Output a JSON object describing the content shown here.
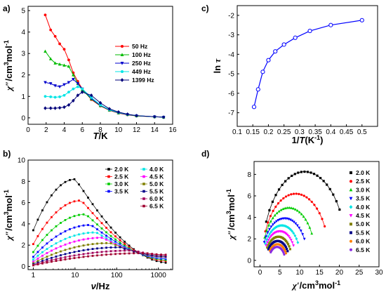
{
  "panels": {
    "a": "a)",
    "b": "b)",
    "c": "c)",
    "d": "d)"
  },
  "chart_data": [
    {
      "id": "a",
      "type": "line",
      "x_label_parts": [
        "T",
        "/K"
      ],
      "y_label_parts": [
        "χ″",
        "/cm",
        "3",
        "mol",
        "-1"
      ],
      "xlim": [
        0,
        16
      ],
      "ylim": [
        -0.3,
        5.2
      ],
      "x_ticks": [
        0,
        2,
        4,
        6,
        8,
        10,
        12,
        14,
        16
      ],
      "y_ticks": [
        0,
        1,
        2,
        3,
        4,
        5
      ],
      "legend_position": "top-right",
      "series": [
        {
          "name": "50 Hz",
          "color": "#ff0000",
          "marker": "circle",
          "x": [
            1.9,
            2.5,
            3,
            3.5,
            4,
            4.5,
            5,
            5.5,
            6,
            7,
            8,
            9,
            10,
            11,
            12,
            14,
            15
          ],
          "y": [
            4.8,
            4.1,
            3.8,
            3.45,
            3.2,
            2.7,
            2.1,
            1.7,
            1.35,
            0.85,
            0.55,
            0.35,
            0.22,
            0.14,
            0.09,
            0.05,
            0.03
          ]
        },
        {
          "name": "100 Hz",
          "color": "#00bb00",
          "marker": "triangle-up",
          "x": [
            1.9,
            2.5,
            3,
            3.5,
            4,
            4.5,
            5,
            5.5,
            6,
            7,
            8,
            9,
            10,
            11,
            12,
            14,
            15
          ],
          "y": [
            3.1,
            2.75,
            2.55,
            2.5,
            2.45,
            2.4,
            2.0,
            1.6,
            1.3,
            0.88,
            0.57,
            0.36,
            0.23,
            0.15,
            0.09,
            0.05,
            0.03
          ]
        },
        {
          "name": "250 Hz",
          "color": "#0000cc",
          "marker": "triangle-down",
          "x": [
            1.9,
            2.5,
            3,
            3.5,
            4,
            4.5,
            5,
            5.5,
            6,
            7,
            8,
            9,
            10,
            11,
            12,
            14,
            15
          ],
          "y": [
            1.65,
            1.6,
            1.5,
            1.45,
            1.55,
            1.65,
            1.8,
            1.6,
            1.35,
            0.9,
            0.58,
            0.37,
            0.24,
            0.15,
            0.1,
            0.05,
            0.03
          ]
        },
        {
          "name": "449 Hz",
          "color": "#00e5e5",
          "marker": "circle",
          "x": [
            1.9,
            2.5,
            3,
            3.5,
            4,
            4.5,
            5,
            5.5,
            6,
            7,
            8,
            9,
            10,
            11,
            12,
            14,
            15
          ],
          "y": [
            1.0,
            0.98,
            0.96,
            0.98,
            1.05,
            1.2,
            1.35,
            1.45,
            1.35,
            0.95,
            0.6,
            0.38,
            0.25,
            0.16,
            0.1,
            0.05,
            0.03
          ]
        },
        {
          "name": "1399 Hz",
          "color": "#00007a",
          "marker": "diamond",
          "x": [
            1.9,
            2.5,
            3,
            3.5,
            4,
            4.5,
            5,
            5.5,
            6,
            7,
            8,
            9,
            10,
            11,
            12,
            14,
            15
          ],
          "y": [
            0.45,
            0.45,
            0.45,
            0.47,
            0.5,
            0.6,
            0.8,
            1.05,
            1.2,
            1.05,
            0.7,
            0.42,
            0.27,
            0.17,
            0.1,
            0.05,
            0.03
          ]
        }
      ]
    },
    {
      "id": "b",
      "type": "scatter",
      "x_scale": "log",
      "x_label_parts": [
        "ν",
        "/Hz"
      ],
      "y_label_parts": [
        "χ″",
        "/cm",
        "3",
        "mol",
        "-1"
      ],
      "xlim": [
        0.75,
        2200
      ],
      "ylim": [
        -0.3,
        10
      ],
      "x_ticks": [
        1,
        10,
        100,
        1000
      ],
      "y_ticks": [
        0,
        2,
        4,
        6,
        8,
        10
      ],
      "legend_position": "top-right",
      "series": [
        {
          "name": "2.0 K",
          "color": "#000000",
          "peak_x": 10,
          "peak_y": 8.2,
          "base_y": 3.4,
          "tail_y": 0.35
        },
        {
          "name": "2.5 K",
          "color": "#ff0000",
          "peak_x": 14,
          "peak_y": 6.2,
          "base_y": 2.1,
          "tail_y": 0.5
        },
        {
          "name": "3.0 K",
          "color": "#00cc00",
          "peak_x": 18,
          "peak_y": 4.9,
          "base_y": 1.35,
          "tail_y": 0.6
        },
        {
          "name": "3.5 K",
          "color": "#0000ff",
          "peak_x": 24,
          "peak_y": 3.9,
          "base_y": 0.9,
          "tail_y": 0.7
        },
        {
          "name": "4.0 K",
          "color": "#00e5e5",
          "peak_x": 32,
          "peak_y": 3.2,
          "base_y": 0.65,
          "tail_y": 0.8
        },
        {
          "name": "4.5 K",
          "color": "#ff00ff",
          "peak_x": 45,
          "peak_y": 2.7,
          "base_y": 0.45,
          "tail_y": 0.85
        },
        {
          "name": "5.0 K",
          "color": "#808000",
          "peak_x": 70,
          "peak_y": 2.2,
          "base_y": 0.3,
          "tail_y": 0.9
        },
        {
          "name": "5.5 K",
          "color": "#000088",
          "peak_x": 120,
          "peak_y": 1.8,
          "base_y": 0.2,
          "tail_y": 0.95
        },
        {
          "name": "6.0 K",
          "color": "#a0005a",
          "peak_x": 250,
          "peak_y": 1.5,
          "base_y": 0.14,
          "tail_y": 1.05
        },
        {
          "name": "6.5 K",
          "color": "#a00030",
          "peak_x": 500,
          "peak_y": 1.25,
          "base_y": 0.1,
          "tail_y": 1.1
        }
      ]
    },
    {
      "id": "c",
      "type": "line",
      "x_label_parts": [
        "1/",
        "T",
        "(K",
        "-1",
        ")"
      ],
      "y_label_parts": [
        "ln",
        "τ"
      ],
      "xlim": [
        0.1,
        0.55
      ],
      "ylim": [
        -7.7,
        -1.5
      ],
      "x_ticks": [
        0.1,
        0.15,
        0.2,
        0.25,
        0.3,
        0.35,
        0.4,
        0.45,
        0.5
      ],
      "x_tick_labels": [
        "0.1",
        "0.15",
        "0.2",
        "0.25",
        "0.3",
        "0.35",
        "0.4",
        "0.45",
        "0.5"
      ],
      "y_ticks": [
        -7,
        -6,
        -5,
        -4,
        -3,
        -2
      ],
      "color": "#0000ff",
      "x": [
        0.154,
        0.167,
        0.182,
        0.2,
        0.222,
        0.25,
        0.286,
        0.333,
        0.4,
        0.5
      ],
      "y": [
        -6.7,
        -5.8,
        -4.9,
        -4.3,
        -3.85,
        -3.5,
        -3.15,
        -2.8,
        -2.5,
        -2.25
      ]
    },
    {
      "id": "d",
      "type": "scatter",
      "x_label_parts": [
        "χ′",
        "/cm",
        "3",
        "mol",
        "-1"
      ],
      "y_label_parts": [
        "χ″",
        "/cm",
        "3",
        "mol",
        "-1"
      ],
      "xlim": [
        -1.5,
        30
      ],
      "ylim": [
        -0.6,
        9.2
      ],
      "x_ticks": [
        0,
        5,
        10,
        15,
        20,
        25,
        30
      ],
      "y_ticks": [
        0,
        2,
        4,
        6,
        8
      ],
      "legend_position": "right",
      "series": [
        {
          "name": "2.0 K",
          "color": "#000000",
          "x0": 0.5,
          "x1": 22,
          "peak": 8.25,
          "start": 0.05,
          "end": 0.91
        },
        {
          "name": "2.5 K",
          "color": "#ff0000",
          "x0": 0.5,
          "x1": 17.5,
          "peak": 6.2,
          "start": 0.05,
          "end": 0.93
        },
        {
          "name": "3.0 K",
          "color": "#00cc00",
          "x0": 0.5,
          "x1": 14,
          "peak": 4.9,
          "start": 0.05,
          "end": 0.93
        },
        {
          "name": "3.5 K",
          "color": "#0000ff",
          "x0": 0.5,
          "x1": 12,
          "peak": 3.9,
          "start": 0.05,
          "end": 0.93
        },
        {
          "name": "4.0 K",
          "color": "#00e5e5",
          "x0": 0.8,
          "x1": 10.2,
          "peak": 3.25,
          "start": 0.06,
          "end": 0.93
        },
        {
          "name": "4.5 K",
          "color": "#ff00ff",
          "x0": 1,
          "x1": 9,
          "peak": 2.7,
          "start": 0.07,
          "end": 0.93
        },
        {
          "name": "5.0 K",
          "color": "#808000",
          "x0": 1.3,
          "x1": 8,
          "peak": 2.2,
          "start": 0.08,
          "end": 0.94
        },
        {
          "name": "5.5 K",
          "color": "#000088",
          "x0": 1.6,
          "x1": 7.3,
          "peak": 1.8,
          "start": 0.09,
          "end": 0.94
        },
        {
          "name": "6.0 K",
          "color": "#ff7f00",
          "x0": 2,
          "x1": 6.8,
          "peak": 1.5,
          "start": 0.1,
          "end": 0.95
        },
        {
          "name": "6.5 K",
          "color": "#8a2be2",
          "x0": 2.3,
          "x1": 6.3,
          "peak": 1.25,
          "start": 0.1,
          "end": 0.95
        }
      ]
    }
  ]
}
